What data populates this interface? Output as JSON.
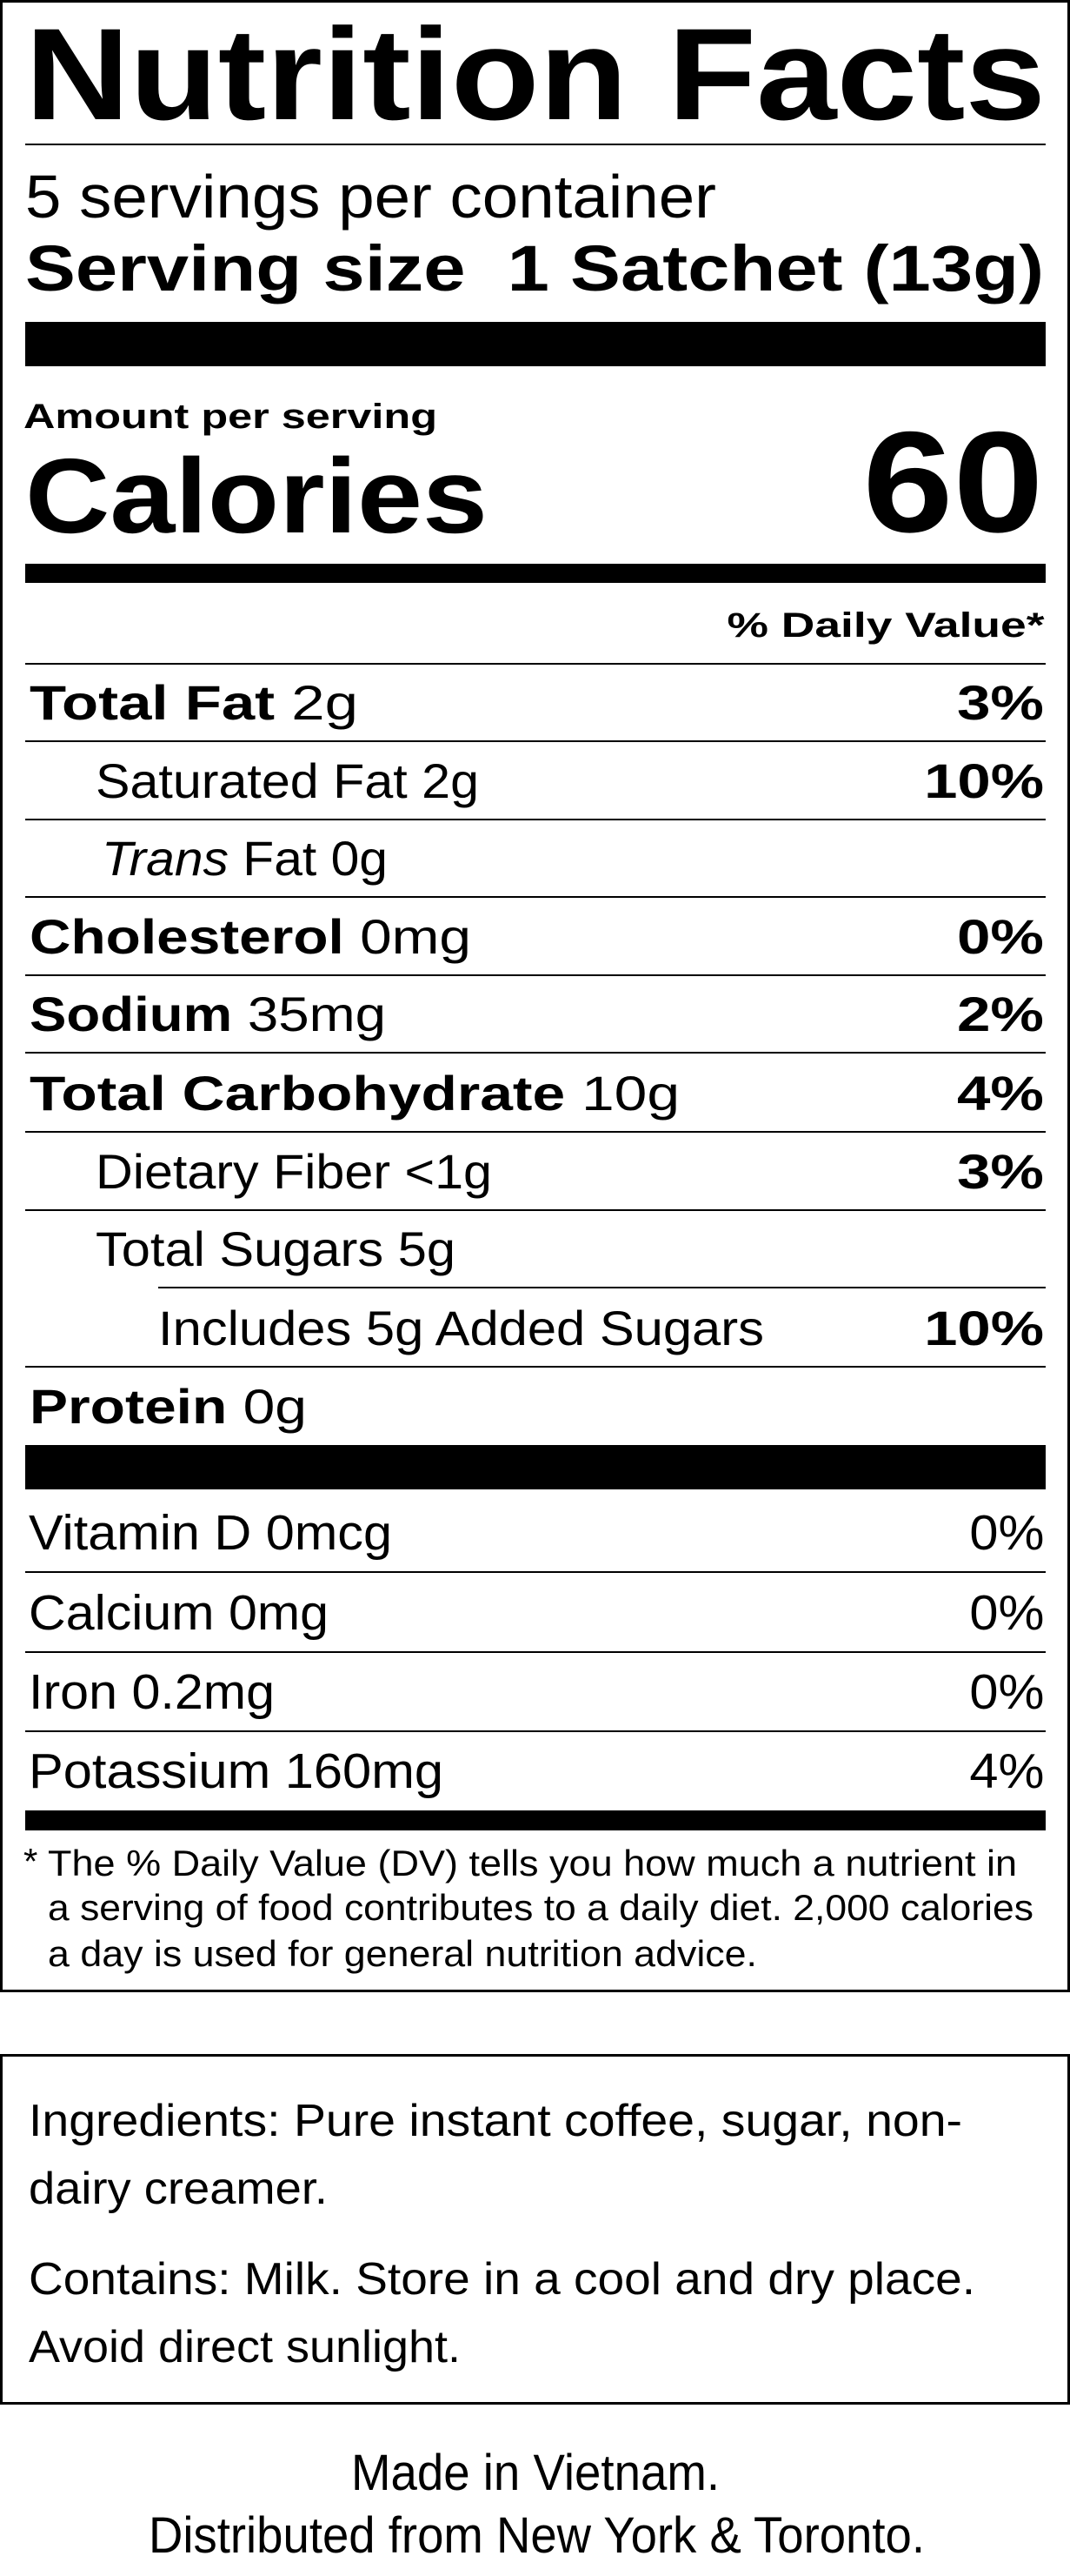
{
  "label": {
    "title": "Nutrition Facts",
    "servings_per_container": "5 servings per container",
    "serving_size_label": "Serving size",
    "serving_size_value": "1 Satchet (13g)",
    "amount_per_serving": "Amount per serving",
    "calories_label": "Calories",
    "calories_value": "60",
    "daily_value_header": "% Daily Value*",
    "nutrients": [
      {
        "name": "Total Fat",
        "amount": "2g",
        "dv": "3%"
      },
      {
        "name": "Saturated Fat",
        "amount": "2g",
        "dv": "10%"
      },
      {
        "name_italic": "Trans",
        "name": "Fat",
        "amount": "0g",
        "dv": ""
      },
      {
        "name": "Cholesterol",
        "amount": "0mg",
        "dv": "0%"
      },
      {
        "name": "Sodium",
        "amount": "35mg",
        "dv": "2%"
      },
      {
        "name": "Total Carbohydrate",
        "amount": "10g",
        "dv": "4%"
      },
      {
        "name": "Dietary Fiber",
        "amount": "<1g",
        "dv": "3%"
      },
      {
        "name": "Total Sugars",
        "amount": "5g",
        "dv": ""
      },
      {
        "name": "Includes 5g Added Sugars",
        "amount": "",
        "dv": "10%"
      },
      {
        "name": "Protein",
        "amount": "0g",
        "dv": ""
      }
    ],
    "vitamins": [
      {
        "name": "Vitamin D 0mcg",
        "dv": "0%"
      },
      {
        "name": "Calcium 0mg",
        "dv": "0%"
      },
      {
        "name": "Iron 0.2mg",
        "dv": "0%"
      },
      {
        "name": "Potassium 160mg",
        "dv": "4%"
      }
    ],
    "footnote_marker": "*",
    "footnote_lines": [
      "The % Daily Value (DV) tells you how much a nutrient in",
      "a serving of food contributes to a daily diet. 2,000 calories",
      "a day is used for general nutrition advice."
    ]
  },
  "ingredients": {
    "label": "Ingredients:",
    "lines": [
      "Pure instant coffee, sugar, non-",
      "dairy creamer."
    ],
    "contains_label": "Contains:",
    "contains_lines": [
      "Milk. Store in a cool and dry place.",
      "Avoid direct sunlight."
    ]
  },
  "origin": {
    "made_in": "Made in Vietnam.",
    "distributed": "Distributed from New York & Toronto."
  }
}
